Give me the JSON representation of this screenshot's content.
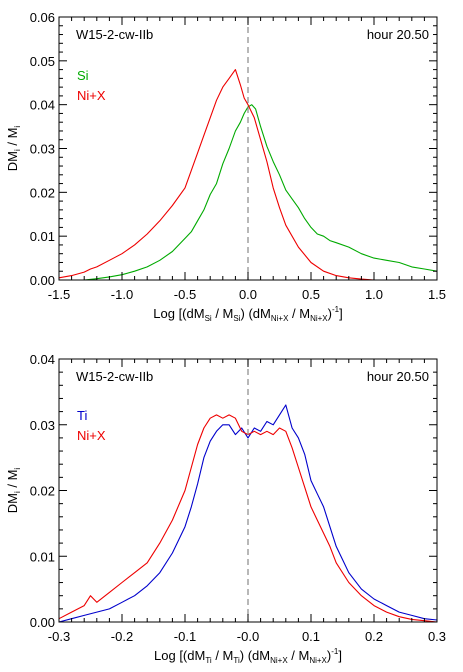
{
  "chart_data": [
    {
      "type": "line",
      "model_label": "W15-2-cw-IIb",
      "time_label": "hour 20.50",
      "xlim": [
        -1.5,
        1.5
      ],
      "ylim": [
        0,
        0.06
      ],
      "xticks": [
        -1.5,
        -1.0,
        -0.5,
        0.0,
        0.5,
        1.0,
        1.5
      ],
      "xtick_labels": [
        "-1.5",
        "-1.0",
        "-0.5",
        "0.0",
        "0.5",
        "1.0",
        "1.5"
      ],
      "yticks": [
        0,
        0.01,
        0.02,
        0.03,
        0.04,
        0.05,
        0.06
      ],
      "ytick_labels": [
        "0.00",
        "0.01",
        "0.02",
        "0.03",
        "0.04",
        "0.05",
        "0.06"
      ],
      "ylabel": {
        "main": "DM",
        "sub": "i",
        "mid": " / M",
        "sub2": "i"
      },
      "xlabel": {
        "pre": "Log [(dM",
        "s1": "Si",
        "m1": " / M",
        "s2": "Si",
        "m2": ") (dM",
        "s3": "Ni+X",
        "m3": " / M",
        "s4": "Ni+X",
        "m4": ")",
        "sup": "-1",
        "post": "]"
      },
      "vline_x": 0.0,
      "series": [
        {
          "name": "Si",
          "color": "#00aa00",
          "x": [
            -1.5,
            -1.4,
            -1.3,
            -1.2,
            -1.1,
            -1.0,
            -0.9,
            -0.8,
            -0.7,
            -0.6,
            -0.5,
            -0.45,
            -0.4,
            -0.35,
            -0.3,
            -0.25,
            -0.2,
            -0.15,
            -0.1,
            -0.06,
            -0.03,
            0.0,
            0.03,
            0.06,
            0.1,
            0.15,
            0.2,
            0.25,
            0.3,
            0.35,
            0.4,
            0.45,
            0.5,
            0.55,
            0.6,
            0.65,
            0.7,
            0.8,
            0.9,
            1.0,
            1.1,
            1.2,
            1.3,
            1.4,
            1.5
          ],
          "values": [
            0.0,
            0.0,
            0.0,
            0.0003,
            0.0007,
            0.0012,
            0.002,
            0.003,
            0.0045,
            0.0065,
            0.0095,
            0.011,
            0.0135,
            0.016,
            0.0195,
            0.022,
            0.0265,
            0.03,
            0.034,
            0.036,
            0.038,
            0.0395,
            0.04,
            0.039,
            0.035,
            0.0305,
            0.027,
            0.024,
            0.0205,
            0.0185,
            0.0165,
            0.014,
            0.012,
            0.0105,
            0.01,
            0.009,
            0.0085,
            0.0075,
            0.006,
            0.005,
            0.0045,
            0.004,
            0.003,
            0.0025,
            0.002
          ]
        },
        {
          "name": "Ni+X",
          "color": "#ee0000",
          "x": [
            -1.5,
            -1.4,
            -1.3,
            -1.25,
            -1.2,
            -1.1,
            -1.0,
            -0.9,
            -0.8,
            -0.7,
            -0.6,
            -0.5,
            -0.45,
            -0.4,
            -0.35,
            -0.3,
            -0.25,
            -0.2,
            -0.15,
            -0.1,
            -0.06,
            -0.03,
            0.0,
            0.05,
            0.1,
            0.15,
            0.2,
            0.25,
            0.3,
            0.4,
            0.5,
            0.6,
            0.7,
            0.8,
            0.9,
            1.0
          ],
          "values": [
            0.0005,
            0.001,
            0.0018,
            0.0025,
            0.003,
            0.0045,
            0.006,
            0.008,
            0.0105,
            0.0135,
            0.017,
            0.021,
            0.025,
            0.029,
            0.033,
            0.037,
            0.041,
            0.044,
            0.046,
            0.048,
            0.0445,
            0.0415,
            0.04,
            0.037,
            0.032,
            0.027,
            0.021,
            0.0165,
            0.0125,
            0.0075,
            0.004,
            0.002,
            0.001,
            0.0005,
            0.0002,
            0.0
          ]
        }
      ]
    },
    {
      "type": "line",
      "model_label": "W15-2-cw-IIb",
      "time_label": "hour 20.50",
      "xlim": [
        -0.3,
        0.3
      ],
      "ylim": [
        0,
        0.04
      ],
      "xticks": [
        -0.3,
        -0.2,
        -0.1,
        0.0,
        0.1,
        0.2,
        0.3
      ],
      "xtick_labels": [
        "-0.3",
        "-0.2",
        "-0.1",
        "-0.0",
        "0.1",
        "0.2",
        "0.3"
      ],
      "yticks": [
        0,
        0.01,
        0.02,
        0.03,
        0.04
      ],
      "ytick_labels": [
        "0.00",
        "0.01",
        "0.02",
        "0.03",
        "0.04"
      ],
      "ylabel": {
        "main": "DM",
        "sub": "i",
        "mid": " / M",
        "sub2": "i"
      },
      "xlabel": {
        "pre": "Log [(dM",
        "s1": "Ti",
        "m1": " / M",
        "s2": "Ti",
        "m2": ") (dM",
        "s3": "Ni+X",
        "m3": " / M",
        "s4": "Ni+X",
        "m4": ")",
        "sup": "-1",
        "post": "]"
      },
      "vline_x": 0.0,
      "series": [
        {
          "name": "Ti",
          "color": "#0000cc",
          "x": [
            -0.3,
            -0.28,
            -0.26,
            -0.24,
            -0.22,
            -0.2,
            -0.18,
            -0.16,
            -0.14,
            -0.12,
            -0.1,
            -0.09,
            -0.08,
            -0.07,
            -0.06,
            -0.05,
            -0.04,
            -0.03,
            -0.02,
            -0.01,
            0.0,
            0.01,
            0.02,
            0.03,
            0.04,
            0.05,
            0.06,
            0.07,
            0.08,
            0.09,
            0.1,
            0.11,
            0.12,
            0.13,
            0.14,
            0.15,
            0.16,
            0.18,
            0.2,
            0.22,
            0.24,
            0.26,
            0.28,
            0.3
          ],
          "values": [
            0.0,
            0.0005,
            0.001,
            0.0015,
            0.002,
            0.003,
            0.004,
            0.0055,
            0.0075,
            0.0105,
            0.0145,
            0.0175,
            0.021,
            0.025,
            0.0275,
            0.029,
            0.03,
            0.03,
            0.0285,
            0.0295,
            0.028,
            0.0295,
            0.029,
            0.0305,
            0.03,
            0.0315,
            0.033,
            0.0295,
            0.028,
            0.0255,
            0.0215,
            0.0195,
            0.0175,
            0.0145,
            0.0115,
            0.0095,
            0.0075,
            0.005,
            0.0035,
            0.0025,
            0.0015,
            0.001,
            0.0005,
            0.0003
          ]
        },
        {
          "name": "Ni+X",
          "color": "#ee0000",
          "x": [
            -0.3,
            -0.28,
            -0.26,
            -0.25,
            -0.24,
            -0.22,
            -0.2,
            -0.18,
            -0.16,
            -0.14,
            -0.12,
            -0.1,
            -0.09,
            -0.08,
            -0.07,
            -0.06,
            -0.05,
            -0.04,
            -0.03,
            -0.02,
            -0.01,
            0.0,
            0.01,
            0.02,
            0.03,
            0.04,
            0.05,
            0.06,
            0.07,
            0.08,
            0.09,
            0.1,
            0.11,
            0.12,
            0.13,
            0.14,
            0.16,
            0.18,
            0.2,
            0.22,
            0.24,
            0.26,
            0.28,
            0.3
          ],
          "values": [
            0.0005,
            0.0015,
            0.0025,
            0.004,
            0.003,
            0.0045,
            0.006,
            0.0075,
            0.009,
            0.012,
            0.0155,
            0.02,
            0.0235,
            0.027,
            0.0295,
            0.031,
            0.0315,
            0.031,
            0.0315,
            0.031,
            0.029,
            0.0285,
            0.029,
            0.0285,
            0.029,
            0.0285,
            0.0295,
            0.029,
            0.0265,
            0.0235,
            0.0205,
            0.0175,
            0.0155,
            0.0135,
            0.0115,
            0.009,
            0.006,
            0.004,
            0.0025,
            0.0015,
            0.0008,
            0.0004,
            0.0002,
            0.0
          ]
        }
      ]
    }
  ]
}
